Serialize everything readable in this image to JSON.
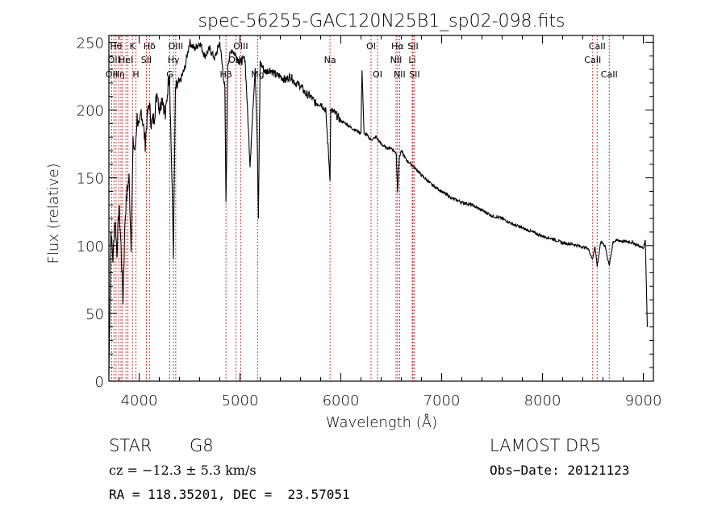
{
  "chart_data": {
    "type": "line",
    "title": "spec-56255-GAC120N25B1_sp02-098.fits",
    "xlabel": "Wavelength (Å)",
    "ylabel": "Flux (relative)",
    "xlim": [
      3700,
      9100
    ],
    "ylim": [
      0,
      255
    ],
    "xticks": [
      4000,
      5000,
      6000,
      7000,
      8000,
      9000
    ],
    "yticks": [
      0,
      50,
      100,
      150,
      200,
      250
    ],
    "grid": false,
    "series": [
      {
        "x": [
          3700,
          3720,
          3740,
          3760,
          3780,
          3800,
          3820,
          3840,
          3860,
          3880,
          3900,
          3920,
          3940,
          3960,
          3980,
          4000,
          4020,
          4040,
          4060,
          4080,
          4100,
          4120,
          4150,
          4180,
          4200,
          4230,
          4260,
          4300,
          4320,
          4340,
          4360,
          4400,
          4450,
          4500,
          4550,
          4600,
          4650,
          4700,
          4750,
          4800,
          4850,
          4861,
          4880,
          4920,
          4960,
          5000,
          5050,
          5100,
          5150,
          5170,
          5183,
          5200,
          5250,
          5300,
          5350,
          5400,
          5450,
          5500,
          5550,
          5600,
          5650,
          5700,
          5750,
          5800,
          5850,
          5893,
          5900,
          5950,
          6000,
          6050,
          6100,
          6150,
          6200,
          6210,
          6230,
          6250,
          6300,
          6350,
          6400,
          6450,
          6500,
          6550,
          6563,
          6580,
          6600,
          6650,
          6700,
          6750,
          6800,
          6900,
          7000,
          7100,
          7200,
          7300,
          7400,
          7500,
          7600,
          7700,
          7800,
          7900,
          8000,
          8100,
          8200,
          8300,
          8400,
          8450,
          8498,
          8520,
          8542,
          8580,
          8620,
          8662,
          8700,
          8750,
          8800,
          8850,
          8900,
          8950,
          9000,
          9020,
          9040
        ],
        "y": [
          5,
          110,
          90,
          120,
          95,
          130,
          100,
          60,
          120,
          140,
          150,
          100,
          175,
          170,
          195,
          185,
          200,
          190,
          175,
          195,
          205,
          190,
          195,
          215,
          200,
          210,
          195,
          230,
          165,
          95,
          215,
          220,
          230,
          250,
          245,
          250,
          240,
          245,
          238,
          250,
          215,
          130,
          235,
          245,
          240,
          235,
          238,
          160,
          232,
          180,
          120,
          235,
          228,
          230,
          226,
          225,
          222,
          225,
          220,
          218,
          212,
          210,
          205,
          205,
          200,
          150,
          200,
          197,
          192,
          190,
          187,
          185,
          183,
          230,
          182,
          182,
          178,
          180,
          175,
          172,
          172,
          168,
          140,
          165,
          170,
          163,
          160,
          156,
          152,
          145,
          140,
          135,
          132,
          130,
          126,
          122,
          120,
          116,
          113,
          110,
          107,
          105,
          102,
          101,
          99,
          98,
          90,
          100,
          85,
          103,
          100,
          85,
          103,
          104,
          103,
          103,
          102,
          100,
          98,
          104,
          40
        ]
      }
    ],
    "lines": [
      {
        "wl": 3727,
        "label": "OII",
        "row": 3
      },
      {
        "wl": 3750,
        "label": "OII",
        "row": 2
      },
      {
        "wl": 3771,
        "label": "Hθ",
        "row": 1
      },
      {
        "wl": 3798,
        "label": "Hη",
        "row": 3
      },
      {
        "wl": 3820,
        "label": "",
        "row": 0
      },
      {
        "wl": 3835,
        "label": "",
        "row": 0
      },
      {
        "wl": 3869,
        "label": "HeI",
        "row": 2
      },
      {
        "wl": 3889,
        "label": "",
        "row": 0
      },
      {
        "wl": 3934,
        "label": "K",
        "row": 1
      },
      {
        "wl": 3968,
        "label": "H",
        "row": 3
      },
      {
        "wl": 4072,
        "label": "SII",
        "row": 2
      },
      {
        "wl": 4102,
        "label": "Hδ",
        "row": 1
      },
      {
        "wl": 4304,
        "label": "G",
        "row": 3
      },
      {
        "wl": 4341,
        "label": "Hγ",
        "row": 2
      },
      {
        "wl": 4363,
        "label": "OIII",
        "row": 1
      },
      {
        "wl": 4861,
        "label": "Hβ",
        "row": 3
      },
      {
        "wl": 4959,
        "label": "OIII",
        "row": 2
      },
      {
        "wl": 5007,
        "label": "OIII",
        "row": 1
      },
      {
        "wl": 5175,
        "label": "Mg",
        "row": 3
      },
      {
        "wl": 5893,
        "label": "Na",
        "row": 2
      },
      {
        "wl": 6300,
        "label": "OI",
        "row": 1
      },
      {
        "wl": 6364,
        "label": "OI",
        "row": 3
      },
      {
        "wl": 6548,
        "label": "NII",
        "row": 2
      },
      {
        "wl": 6563,
        "label": "Hα",
        "row": 1
      },
      {
        "wl": 6583,
        "label": "NII",
        "row": 3
      },
      {
        "wl": 6708,
        "label": "Li",
        "row": 2
      },
      {
        "wl": 6716,
        "label": "SII",
        "row": 1
      },
      {
        "wl": 6731,
        "label": "SII",
        "row": 3
      },
      {
        "wl": 8498,
        "label": "CaII",
        "row": 2
      },
      {
        "wl": 8542,
        "label": "CaII",
        "row": 1
      },
      {
        "wl": 8662,
        "label": "CaII",
        "row": 3
      }
    ]
  },
  "info": {
    "class": "STAR",
    "subclass": "G8",
    "survey": "LAMOST DR5",
    "cz": "cz = −12.3 ± 5.3 km/s",
    "obs_date": "Obs−Date: 20121123",
    "radec": "RA = 118.35201, DEC =  23.57051"
  },
  "colors": {
    "line_marker": "#cc2222",
    "spectrum": "#000000"
  }
}
